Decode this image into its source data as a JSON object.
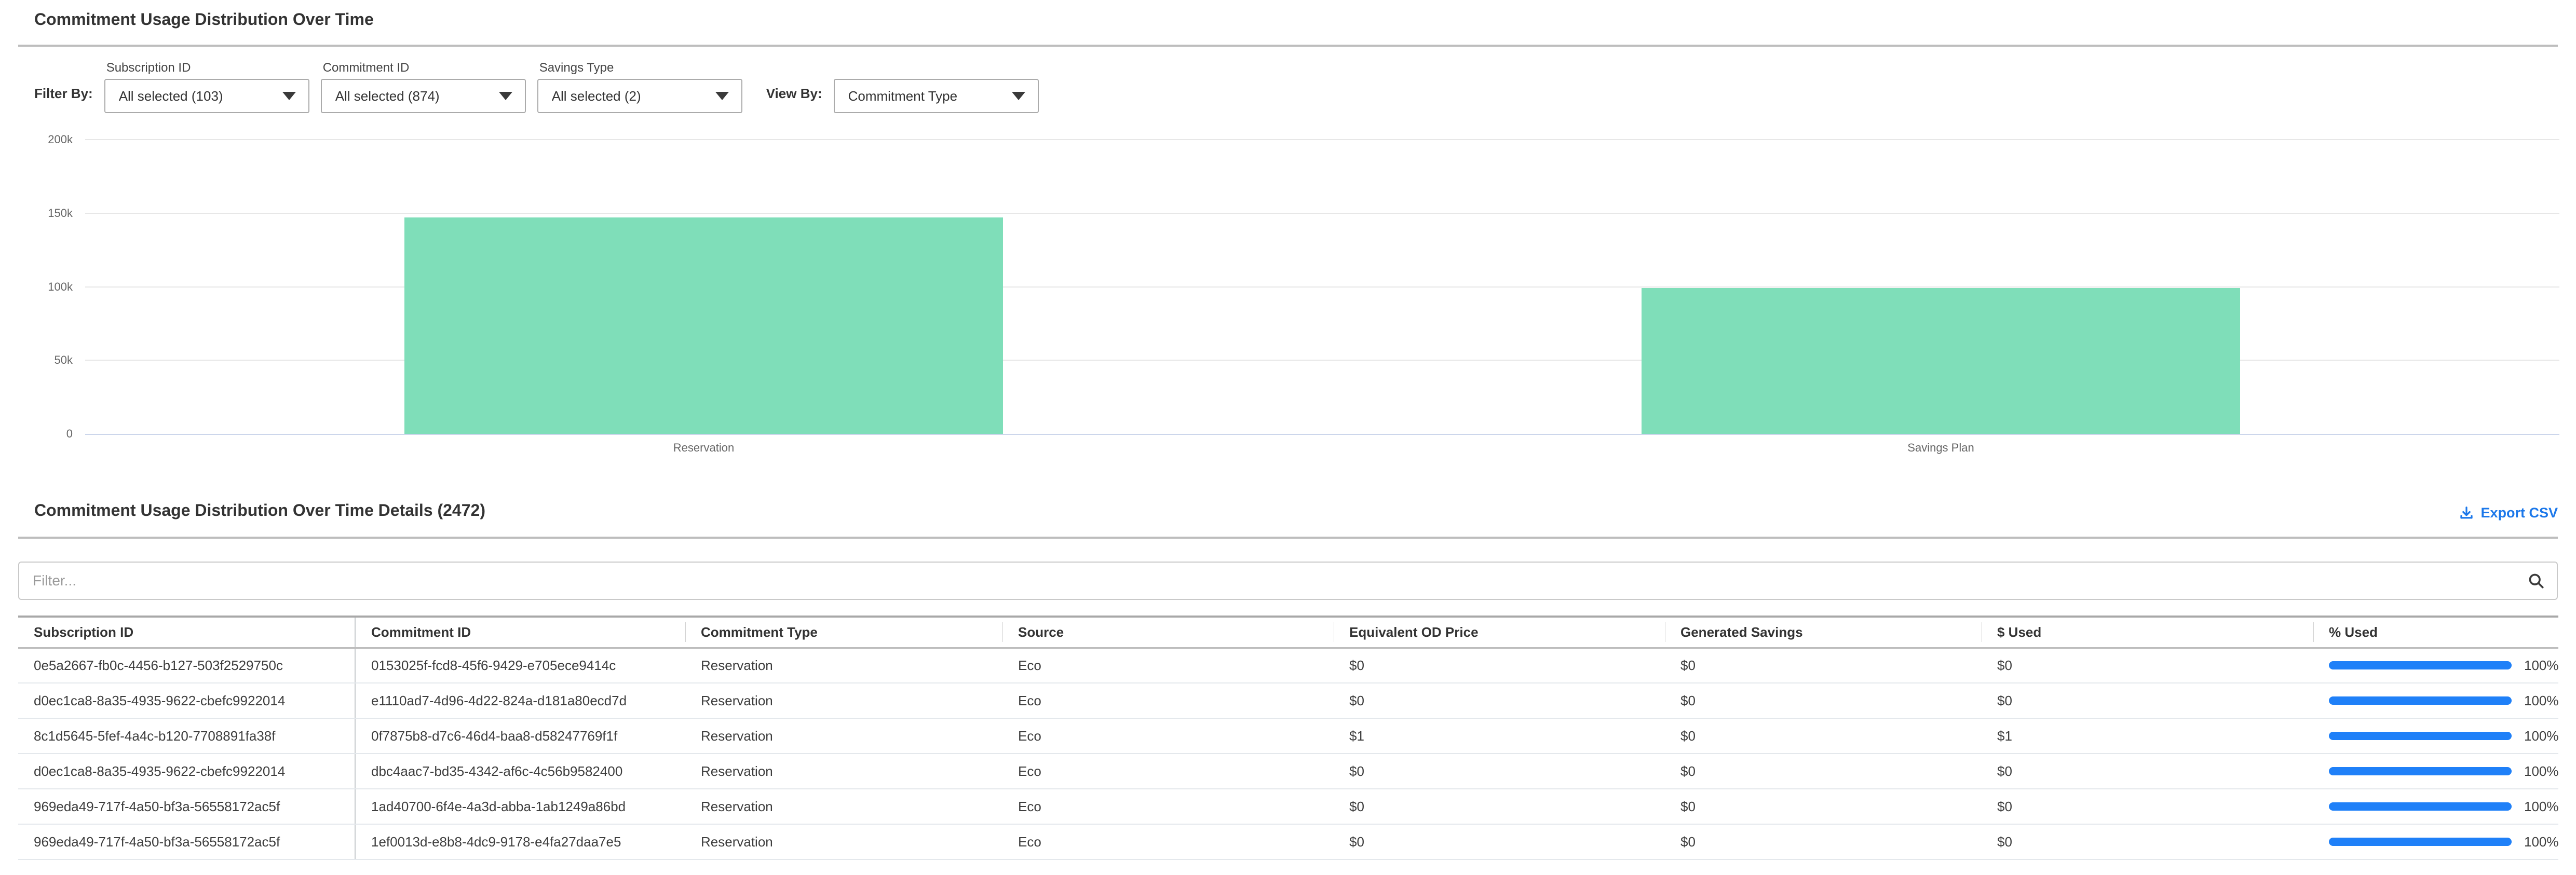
{
  "page": {
    "title": "Commitment Usage Distribution Over Time"
  },
  "filters": {
    "filter_by_label": "Filter By:",
    "dropdowns": [
      {
        "label": "Subscription ID",
        "value": "All selected (103)"
      },
      {
        "label": "Commitment ID",
        "value": "All selected (874)"
      },
      {
        "label": "Savings Type",
        "value": "All selected (2)"
      }
    ],
    "view_by": {
      "label": "View By:",
      "value": "Commitment Type"
    }
  },
  "chart_data": {
    "type": "bar",
    "categories": [
      "Reservation",
      "Savings Plan"
    ],
    "values": [
      147000,
      99000
    ],
    "title": "",
    "xlabel": "",
    "ylabel": "",
    "ylim": [
      0,
      200000
    ],
    "yticks": [
      0,
      50000,
      100000,
      150000,
      200000
    ],
    "ytick_labels": [
      "0",
      "50k",
      "100k",
      "150k",
      "200k"
    ],
    "grid": true,
    "legend": "none",
    "bar_color": "#7FDEB9"
  },
  "details": {
    "title": "Commitment Usage Distribution Over Time Details (2472)",
    "export_label": "Export CSV",
    "filter_placeholder": "Filter...",
    "table": {
      "columns": [
        "Subscription ID",
        "Commitment ID",
        "Commitment Type",
        "Source",
        "Equivalent OD Price",
        "Generated Savings",
        "$ Used",
        "% Used"
      ],
      "rows": [
        {
          "subscription_id": "0e5a2667-fb0c-4456-b127-503f2529750c",
          "commitment_id": "0153025f-fcd8-45f6-9429-e705ece9414c",
          "commitment_type": "Reservation",
          "source": "Eco",
          "equivalent_od_price": "$0",
          "generated_savings": "$0",
          "dollars_used": "$0",
          "pct_used": 100,
          "pct_used_label": "100%"
        },
        {
          "subscription_id": "d0ec1ca8-8a35-4935-9622-cbefc9922014",
          "commitment_id": "e1110ad7-4d96-4d22-824a-d181a80ecd7d",
          "commitment_type": "Reservation",
          "source": "Eco",
          "equivalent_od_price": "$0",
          "generated_savings": "$0",
          "dollars_used": "$0",
          "pct_used": 100,
          "pct_used_label": "100%"
        },
        {
          "subscription_id": "8c1d5645-5fef-4a4c-b120-7708891fa38f",
          "commitment_id": "0f7875b8-d7c6-46d4-baa8-d58247769f1f",
          "commitment_type": "Reservation",
          "source": "Eco",
          "equivalent_od_price": "$1",
          "generated_savings": "$0",
          "dollars_used": "$1",
          "pct_used": 100,
          "pct_used_label": "100%"
        },
        {
          "subscription_id": "d0ec1ca8-8a35-4935-9622-cbefc9922014",
          "commitment_id": "dbc4aac7-bd35-4342-af6c-4c56b9582400",
          "commitment_type": "Reservation",
          "source": "Eco",
          "equivalent_od_price": "$0",
          "generated_savings": "$0",
          "dollars_used": "$0",
          "pct_used": 100,
          "pct_used_label": "100%"
        },
        {
          "subscription_id": "969eda49-717f-4a50-bf3a-56558172ac5f",
          "commitment_id": "1ad40700-6f4e-4a3d-abba-1ab1249a86bd",
          "commitment_type": "Reservation",
          "source": "Eco",
          "equivalent_od_price": "$0",
          "generated_savings": "$0",
          "dollars_used": "$0",
          "pct_used": 100,
          "pct_used_label": "100%"
        },
        {
          "subscription_id": "969eda49-717f-4a50-bf3a-56558172ac5f",
          "commitment_id": "1ef0013d-e8b8-4dc9-9178-e4fa27daa7e5",
          "commitment_type": "Reservation",
          "source": "Eco",
          "equivalent_od_price": "$0",
          "generated_savings": "$0",
          "dollars_used": "$0",
          "pct_used": 100,
          "pct_used_label": "100%"
        }
      ]
    }
  },
  "colors": {
    "accent_blue": "#1C78EA",
    "progress_blue": "#1F80F8",
    "bar_green": "#7FDEB9"
  }
}
